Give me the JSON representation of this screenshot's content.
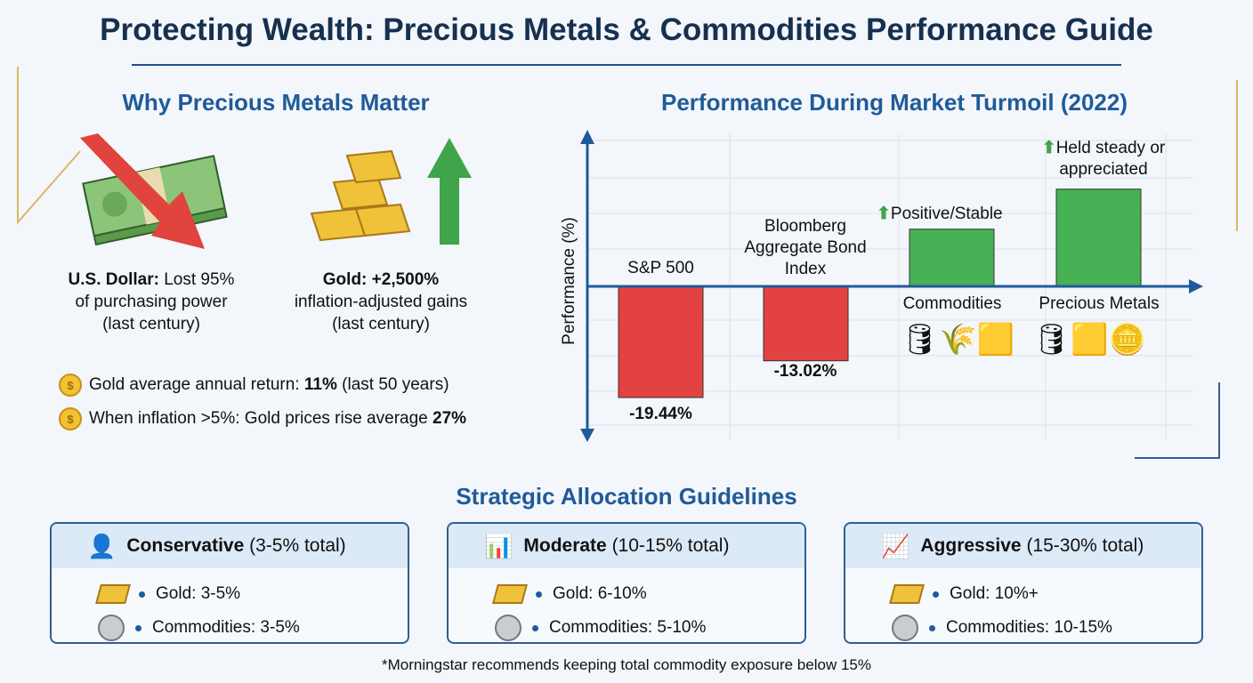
{
  "title": "Protecting Wealth: Precious Metals & Commodities Performance Guide",
  "left": {
    "heading": "Why Precious Metals Matter",
    "dollar": {
      "bold": "U.S. Dollar:",
      "rest": " Lost 95%",
      "line2": "of purchasing power",
      "line3": "(last century)"
    },
    "gold": {
      "bold": "Gold: +2,500%",
      "line2": "inflation-adjusted gains",
      "line3": "(last century)"
    },
    "facts": [
      {
        "pre": "Gold average annual return: ",
        "bold": "11%",
        "post": " (last 50 years)"
      },
      {
        "pre": "When inflation >5%: Gold prices rise average ",
        "bold": "27%",
        "post": ""
      }
    ]
  },
  "chart_data": {
    "type": "bar",
    "title": "Performance During Market Turmoil (2022)",
    "ylabel": "Performance (%)",
    "categories": [
      "S&P 500",
      "Bloomberg Aggregate Bond Index",
      "Commodities",
      "Precious Metals"
    ],
    "values": [
      -19.44,
      -13.02,
      10,
      17
    ],
    "data_labels": [
      "-19.44%",
      "-13.02%",
      "",
      ""
    ],
    "annotations": [
      "Positive/Stable",
      "Held steady or appreciated"
    ],
    "colors": [
      "#e34242",
      "#e34242",
      "#46b155",
      "#46b155"
    ],
    "ylim": [
      -26,
      26
    ],
    "grid": true
  },
  "allocation": {
    "heading": "Strategic Allocation Guidelines",
    "cards": [
      {
        "name": "Conservative",
        "range": " (3-5% total)",
        "gold": "Gold: 3-5%",
        "commodities": "Commodities: 3-5%"
      },
      {
        "name": "Moderate",
        "range": " (10-15% total)",
        "gold": "Gold: 6-10%",
        "commodities": "Commodities: 5-10%"
      },
      {
        "name": "Aggressive",
        "range": " (15-30% total)",
        "gold": "Gold: 10%+",
        "commodities": "Commodities: 10-15%"
      }
    ],
    "footnote": "*Morningstar recommends keeping total commodity exposure below 15%"
  }
}
